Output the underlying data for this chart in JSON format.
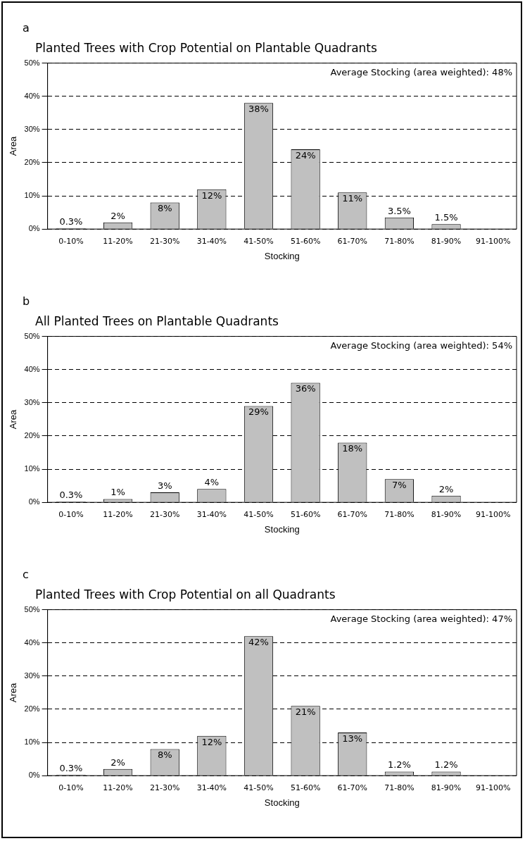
{
  "chart_data": [
    {
      "type": "bar",
      "title": "Planted Trees with Crop Potential on Plantable Quadrants",
      "xlabel": "Stocking",
      "ylabel": "Area",
      "annotations": [
        "a",
        "Average Stocking (area weighted): 48%"
      ],
      "categories": [
        "0-10%",
        "11-20%",
        "21-30%",
        "31-40%",
        "41-50%",
        "51-60%",
        "61-70%",
        "71-80%",
        "81-90%",
        "91-100%"
      ],
      "values": [
        0.3,
        2,
        8,
        12,
        38,
        24,
        11,
        3.5,
        1.5,
        null
      ],
      "color": "#c0c0c0",
      "value_labels": [
        "0.3%",
        "2%",
        "8%",
        "12%",
        "38%",
        "24%",
        "11%",
        "3.5%",
        "1.5%",
        null
      ],
      "ylim": [
        0,
        50
      ],
      "yticks": [
        {
          "value": 0,
          "label": "0%"
        },
        {
          "value": 10,
          "label": "10%"
        },
        {
          "value": 20,
          "label": "20%"
        },
        {
          "value": 30,
          "label": "30%"
        },
        {
          "value": 40,
          "label": "40%"
        },
        {
          "value": 50,
          "label": "50%"
        }
      ],
      "grid": "y",
      "line_style": "dashed",
      "legend": false
    },
    {
      "type": "bar",
      "title": "All Planted Trees on Plantable Quadrants",
      "xlabel": "Stocking",
      "ylabel": "Area",
      "annotations": [
        "b",
        "Average Stocking (area weighted): 54%"
      ],
      "categories": [
        "0-10%",
        "11-20%",
        "21-30%",
        "31-40%",
        "41-50%",
        "51-60%",
        "61-70%",
        "71-80%",
        "81-90%",
        "91-100%"
      ],
      "values": [
        0.3,
        1,
        3,
        4,
        29,
        36,
        18,
        7,
        2,
        null
      ],
      "color": "#c0c0c0",
      "value_labels": [
        "0.3%",
        "1%",
        "3%",
        "4%",
        "29%",
        "36%",
        "18%",
        "7%",
        "2%",
        null
      ],
      "ylim": [
        0,
        50
      ],
      "yticks": [
        {
          "value": 0,
          "label": "0%"
        },
        {
          "value": 10,
          "label": "10%"
        },
        {
          "value": 20,
          "label": "20%"
        },
        {
          "value": 30,
          "label": "30%"
        },
        {
          "value": 40,
          "label": "40%"
        },
        {
          "value": 50,
          "label": "50%"
        }
      ],
      "grid": "y",
      "line_style": "dashed",
      "legend": false
    },
    {
      "type": "bar",
      "title": "Planted Trees with Crop Potential on all Quadrants",
      "xlabel": "Stocking",
      "ylabel": "Area",
      "annotations": [
        "c",
        "Average Stocking (area weighted): 47%"
      ],
      "categories": [
        "0-10%",
        "11-20%",
        "21-30%",
        "31-40%",
        "41-50%",
        "51-60%",
        "61-70%",
        "71-80%",
        "81-90%",
        "91-100%"
      ],
      "values": [
        0.3,
        2,
        8,
        12,
        42,
        21,
        13,
        1.2,
        1.2,
        null
      ],
      "color": "#c0c0c0",
      "value_labels": [
        "0.3%",
        "2%",
        "8%",
        "12%",
        "42%",
        "21%",
        "13%",
        "1.2%",
        "1.2%",
        null
      ],
      "ylim": [
        0,
        50
      ],
      "yticks": [
        {
          "value": 0,
          "label": "0%"
        },
        {
          "value": 10,
          "label": "10%"
        },
        {
          "value": 20,
          "label": "20%"
        },
        {
          "value": 30,
          "label": "30%"
        },
        {
          "value": 40,
          "label": "40%"
        },
        {
          "value": 50,
          "label": "50%"
        }
      ],
      "grid": "y",
      "line_style": "dashed",
      "legend": false
    }
  ]
}
